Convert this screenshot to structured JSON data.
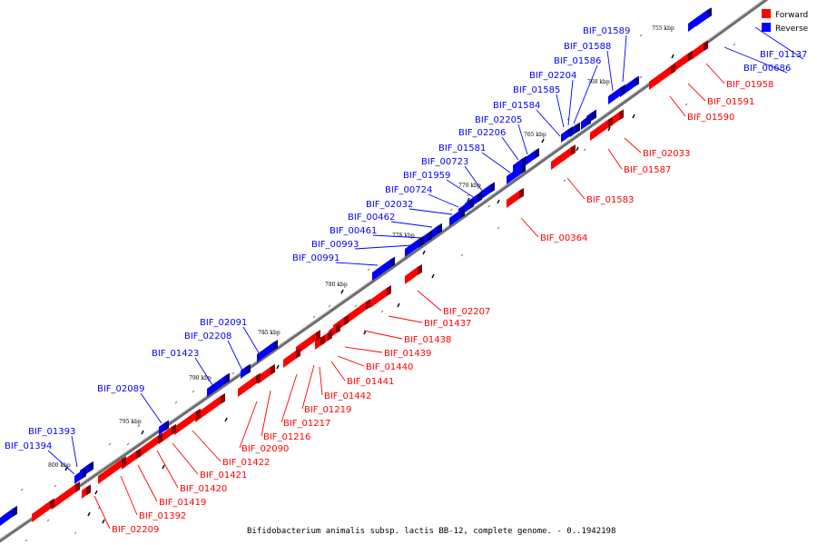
{
  "title": "Bifidobacterium animalis subsp. lactis BB-12, complete genome. - 0..1942198",
  "colors": {
    "forward": "#ff0000",
    "reverse": "#0000ff",
    "backbone": "#8c8c8c"
  },
  "legend": [
    {
      "label": "Forward",
      "strand": "forward"
    },
    {
      "label": "Reverse",
      "strand": "reverse"
    }
  ],
  "scale_labels": [
    "755 kbp",
    "760 kbp",
    "765 kbp",
    "770 kbp",
    "775 kbp",
    "780 kbp",
    "785 kbp",
    "790 kbp",
    "795 kbp",
    "800 kbp"
  ],
  "reverse_genes": [
    "BIF_01589",
    "BIF_01588",
    "BIF_01586",
    "BIF_02204",
    "BIF_01585",
    "BIF_01584",
    "BIF_02205",
    "BIF_02206",
    "BIF_01581",
    "BIF_00723",
    "BIF_01959",
    "BIF_00724",
    "BIF_02032",
    "BIF_00462",
    "BIF_00461",
    "BIF_00993",
    "BIF_00991",
    "BIF_02091",
    "BIF_02208",
    "BIF_01423",
    "BIF_02089",
    "BIF_01393",
    "BIF_01394",
    "BIF_01137",
    "BIF_00686"
  ],
  "forward_genes": [
    "BIF_01958",
    "BIF_01591",
    "BIF_01590",
    "BIF_02033",
    "BIF_01587",
    "BIF_01583",
    "BIF_00364",
    "BIF_02207",
    "BIF_01437",
    "BIF_01438",
    "BIF_01439",
    "BIF_01440",
    "BIF_01441",
    "BIF_01442",
    "BIF_01219",
    "BIF_01217",
    "BIF_01216",
    "BIF_02090",
    "BIF_01422",
    "BIF_01421",
    "BIF_01420",
    "BIF_01419",
    "BIF_01392",
    "BIF_02209"
  ]
}
